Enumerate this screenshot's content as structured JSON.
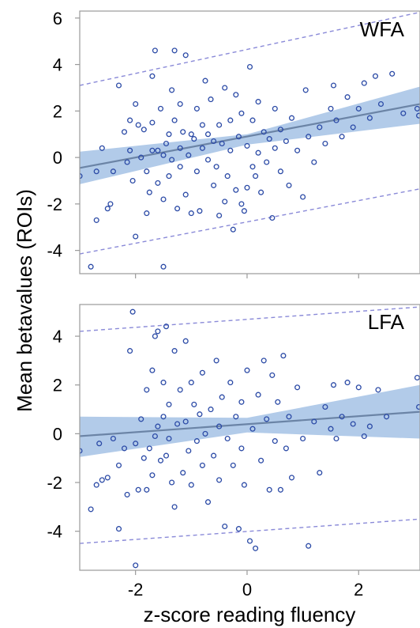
{
  "chart_data": [
    {
      "type": "scatter",
      "panel_label": "WFA",
      "xlim": [
        -3.0,
        3.1
      ],
      "ylim": [
        -5.0,
        6.3
      ],
      "yticks": [
        "6",
        "4",
        "2",
        "0",
        "-2",
        "-4"
      ],
      "ytick_values": [
        6,
        4,
        2,
        0,
        -2,
        -4
      ],
      "fit": {
        "x": [
          -3.0,
          3.1
        ],
        "y": [
          -0.45,
          2.3
        ]
      },
      "ci_band": {
        "x": [
          -3.0,
          0.0,
          3.1
        ],
        "lower": [
          -1.15,
          0.55,
          1.45
        ],
        "upper": [
          0.25,
          1.0,
          3.05
        ]
      },
      "prediction_interval": {
        "x": [
          -3.0,
          3.1
        ],
        "lower": [
          -4.15,
          -1.35
        ],
        "upper": [
          3.1,
          6.25
        ]
      },
      "points": [
        [
          -3.0,
          -0.8
        ],
        [
          -2.8,
          -4.7
        ],
        [
          -2.7,
          -0.6
        ],
        [
          -2.7,
          -2.7
        ],
        [
          -2.6,
          0.4
        ],
        [
          -2.5,
          -2.2
        ],
        [
          -2.45,
          -2.0
        ],
        [
          -2.4,
          -0.6
        ],
        [
          -2.3,
          3.1
        ],
        [
          -2.2,
          1.1
        ],
        [
          -2.15,
          -0.2
        ],
        [
          -2.1,
          1.6
        ],
        [
          -2.1,
          0.3
        ],
        [
          -2.05,
          -1.0
        ],
        [
          -2.0,
          -3.4
        ],
        [
          -2.0,
          2.3
        ],
        [
          -1.95,
          1.4
        ],
        [
          -1.9,
          0.0
        ],
        [
          -1.85,
          1.2
        ],
        [
          -1.8,
          -2.4
        ],
        [
          -1.8,
          -0.6
        ],
        [
          -1.75,
          -1.5
        ],
        [
          -1.7,
          0.3
        ],
        [
          -1.7,
          1.5
        ],
        [
          -1.7,
          3.5
        ],
        [
          -1.65,
          4.6
        ],
        [
          -1.6,
          -1.1
        ],
        [
          -1.6,
          0.3
        ],
        [
          -1.55,
          2.1
        ],
        [
          -1.5,
          -4.7
        ],
        [
          -1.5,
          -1.8
        ],
        [
          -1.5,
          0.1
        ],
        [
          -1.45,
          0.6
        ],
        [
          -1.4,
          -0.8
        ],
        [
          -1.4,
          1.0
        ],
        [
          -1.35,
          -0.1
        ],
        [
          -1.35,
          2.9
        ],
        [
          -1.3,
          4.6
        ],
        [
          -1.3,
          1.6
        ],
        [
          -1.25,
          -2.2
        ],
        [
          -1.2,
          0.4
        ],
        [
          -1.2,
          -0.4
        ],
        [
          -1.2,
          2.3
        ],
        [
          -1.15,
          1.1
        ],
        [
          -1.1,
          4.4
        ],
        [
          -1.1,
          -1.6
        ],
        [
          -1.05,
          0.1
        ],
        [
          -1.0,
          1.0
        ],
        [
          -1.0,
          -2.4
        ],
        [
          -0.95,
          0.8
        ],
        [
          -0.9,
          2.1
        ],
        [
          -0.9,
          -0.6
        ],
        [
          -0.85,
          -2.3
        ],
        [
          -0.8,
          0.4
        ],
        [
          -0.8,
          1.4
        ],
        [
          -0.75,
          3.3
        ],
        [
          -0.7,
          -0.1
        ],
        [
          -0.7,
          1.0
        ],
        [
          -0.65,
          2.5
        ],
        [
          -0.6,
          -1.2
        ],
        [
          -0.6,
          0.7
        ],
        [
          -0.55,
          -0.4
        ],
        [
          -0.5,
          1.4
        ],
        [
          -0.5,
          -2.5
        ],
        [
          -0.45,
          0.6
        ],
        [
          -0.4,
          3.0
        ],
        [
          -0.4,
          -1.9
        ],
        [
          -0.35,
          -0.8
        ],
        [
          -0.3,
          1.6
        ],
        [
          -0.3,
          0.3
        ],
        [
          -0.25,
          -3.1
        ],
        [
          -0.2,
          2.7
        ],
        [
          -0.2,
          -1.4
        ],
        [
          -0.15,
          0.9
        ],
        [
          -0.1,
          -2.0
        ],
        [
          -0.1,
          1.9
        ],
        [
          -0.05,
          -2.3
        ],
        [
          0.0,
          0.5
        ],
        [
          0.0,
          -1.3
        ],
        [
          0.05,
          3.9
        ],
        [
          0.1,
          -0.4
        ],
        [
          0.1,
          1.6
        ],
        [
          0.15,
          -0.8
        ],
        [
          0.2,
          2.4
        ],
        [
          0.2,
          0.2
        ],
        [
          0.25,
          -1.5
        ],
        [
          0.3,
          1.1
        ],
        [
          0.35,
          -0.2
        ],
        [
          0.4,
          0.8
        ],
        [
          0.45,
          -2.6
        ],
        [
          0.5,
          0.4
        ],
        [
          0.5,
          2.1
        ],
        [
          0.6,
          -0.6
        ],
        [
          0.6,
          1.2
        ],
        [
          0.7,
          0.7
        ],
        [
          0.75,
          -1.2
        ],
        [
          0.8,
          1.7
        ],
        [
          0.9,
          0.3
        ],
        [
          1.0,
          -1.7
        ],
        [
          1.05,
          2.9
        ],
        [
          1.1,
          0.9
        ],
        [
          1.2,
          -0.2
        ],
        [
          1.3,
          1.3
        ],
        [
          1.4,
          0.6
        ],
        [
          1.5,
          2.1
        ],
        [
          1.55,
          3.1
        ],
        [
          1.6,
          1.6
        ],
        [
          1.7,
          0.9
        ],
        [
          1.8,
          2.6
        ],
        [
          1.9,
          1.3
        ],
        [
          2.0,
          2.1
        ],
        [
          2.1,
          3.2
        ],
        [
          2.2,
          1.7
        ],
        [
          2.3,
          3.5
        ],
        [
          2.4,
          2.3
        ],
        [
          2.6,
          3.6
        ],
        [
          2.8,
          1.9
        ],
        [
          3.05,
          2.1
        ],
        [
          3.08,
          1.8
        ]
      ]
    },
    {
      "type": "scatter",
      "panel_label": "LFA",
      "xlim": [
        -3.0,
        3.1
      ],
      "ylim": [
        -5.6,
        5.3
      ],
      "yticks": [
        "4",
        "2",
        "0",
        "-2",
        "-4"
      ],
      "ytick_values": [
        4,
        2,
        0,
        -2,
        -4
      ],
      "xticks": [
        "-2",
        "0",
        "2"
      ],
      "xtick_values": [
        -2,
        0,
        2
      ],
      "fit": {
        "x": [
          -3.0,
          3.1
        ],
        "y": [
          -0.1,
          0.9
        ]
      },
      "ci_band": {
        "x": [
          -3.0,
          0.0,
          3.1
        ],
        "lower": [
          -0.95,
          0.05,
          -0.2
        ],
        "upper": [
          0.7,
          0.65,
          2.0
        ]
      },
      "prediction_interval": {
        "x": [
          -3.0,
          3.1
        ],
        "lower": [
          -4.5,
          -3.5
        ],
        "upper": [
          4.2,
          5.2
        ]
      },
      "points": [
        [
          -3.0,
          -0.7
        ],
        [
          -2.8,
          -3.1
        ],
        [
          -2.7,
          -2.1
        ],
        [
          -2.65,
          -0.4
        ],
        [
          -2.6,
          -1.9
        ],
        [
          -2.5,
          -1.8
        ],
        [
          -2.4,
          -0.2
        ],
        [
          -2.3,
          -3.9
        ],
        [
          -2.3,
          -1.3
        ],
        [
          -2.2,
          -0.6
        ],
        [
          -2.15,
          -2.5
        ],
        [
          -2.1,
          3.4
        ],
        [
          -2.05,
          5.0
        ],
        [
          -2.0,
          -5.4
        ],
        [
          -2.0,
          -0.4
        ],
        [
          -1.95,
          -2.3
        ],
        [
          -1.9,
          0.6
        ],
        [
          -1.85,
          -1.0
        ],
        [
          -1.8,
          -2.3
        ],
        [
          -1.8,
          1.8
        ],
        [
          -1.75,
          -0.6
        ],
        [
          -1.7,
          -1.7
        ],
        [
          -1.7,
          2.6
        ],
        [
          -1.65,
          -0.1
        ],
        [
          -1.65,
          4.0
        ],
        [
          -1.6,
          0.3
        ],
        [
          -1.6,
          4.2
        ],
        [
          -1.55,
          -1.1
        ],
        [
          -1.5,
          0.7
        ],
        [
          -1.5,
          2.1
        ],
        [
          -1.45,
          -0.9
        ],
        [
          -1.45,
          4.4
        ],
        [
          -1.4,
          1.2
        ],
        [
          -1.4,
          -0.2
        ],
        [
          -1.35,
          -2.0
        ],
        [
          -1.3,
          3.4
        ],
        [
          -1.3,
          -3.0
        ],
        [
          -1.25,
          0.4
        ],
        [
          -1.2,
          1.8
        ],
        [
          -1.15,
          -1.6
        ],
        [
          -1.1,
          0.5
        ],
        [
          -1.1,
          3.8
        ],
        [
          -1.05,
          -0.7
        ],
        [
          -1.0,
          2.1
        ],
        [
          -1.0,
          -2.1
        ],
        [
          -0.95,
          1.2
        ],
        [
          -0.9,
          -0.3
        ],
        [
          -0.85,
          0.8
        ],
        [
          -0.8,
          -1.3
        ],
        [
          -0.8,
          2.5
        ],
        [
          -0.75,
          0.0
        ],
        [
          -0.7,
          -2.8
        ],
        [
          -0.65,
          1.0
        ],
        [
          -0.6,
          -0.9
        ],
        [
          -0.55,
          3.0
        ],
        [
          -0.5,
          0.3
        ],
        [
          -0.5,
          -1.9
        ],
        [
          -0.45,
          1.5
        ],
        [
          -0.4,
          -3.8
        ],
        [
          -0.35,
          -0.2
        ],
        [
          -0.3,
          2.1
        ],
        [
          -0.25,
          -1.3
        ],
        [
          -0.2,
          0.7
        ],
        [
          -0.15,
          -3.9
        ],
        [
          -0.1,
          1.3
        ],
        [
          -0.1,
          -0.6
        ],
        [
          -0.05,
          -2.1
        ],
        [
          0.0,
          2.6
        ],
        [
          0.05,
          -4.4
        ],
        [
          0.1,
          0.2
        ],
        [
          0.15,
          -4.7
        ],
        [
          0.2,
          1.6
        ],
        [
          0.25,
          -1.1
        ],
        [
          0.3,
          3.0
        ],
        [
          0.35,
          0.6
        ],
        [
          0.4,
          -2.3
        ],
        [
          0.45,
          2.4
        ],
        [
          0.5,
          -0.3
        ],
        [
          0.55,
          1.3
        ],
        [
          0.6,
          -2.3
        ],
        [
          0.65,
          3.2
        ],
        [
          0.7,
          -0.6
        ],
        [
          0.75,
          0.7
        ],
        [
          0.8,
          -1.8
        ],
        [
          0.9,
          1.9
        ],
        [
          1.0,
          -0.2
        ],
        [
          1.1,
          -4.6
        ],
        [
          1.2,
          0.5
        ],
        [
          1.3,
          -1.6
        ],
        [
          1.4,
          1.1
        ],
        [
          1.5,
          0.2
        ],
        [
          1.55,
          2.0
        ],
        [
          1.6,
          -0.2
        ],
        [
          1.7,
          0.7
        ],
        [
          1.8,
          2.1
        ],
        [
          1.9,
          0.4
        ],
        [
          2.0,
          1.9
        ],
        [
          2.1,
          -0.1
        ],
        [
          2.2,
          0.3
        ],
        [
          2.35,
          1.8
        ],
        [
          2.5,
          0.7
        ],
        [
          3.05,
          2.3
        ],
        [
          3.08,
          1.1
        ]
      ]
    }
  ],
  "labels": {
    "y_axis_title": "Mean betavalues (ROIs)",
    "x_axis_title": "z-score reading fluency"
  },
  "colors": {
    "points": "#2b4aa6",
    "band": "#9cbce3",
    "fit_line": "#6b84a6",
    "prediction_line": "#8a8ad8",
    "frame": "#9a9a9a"
  }
}
